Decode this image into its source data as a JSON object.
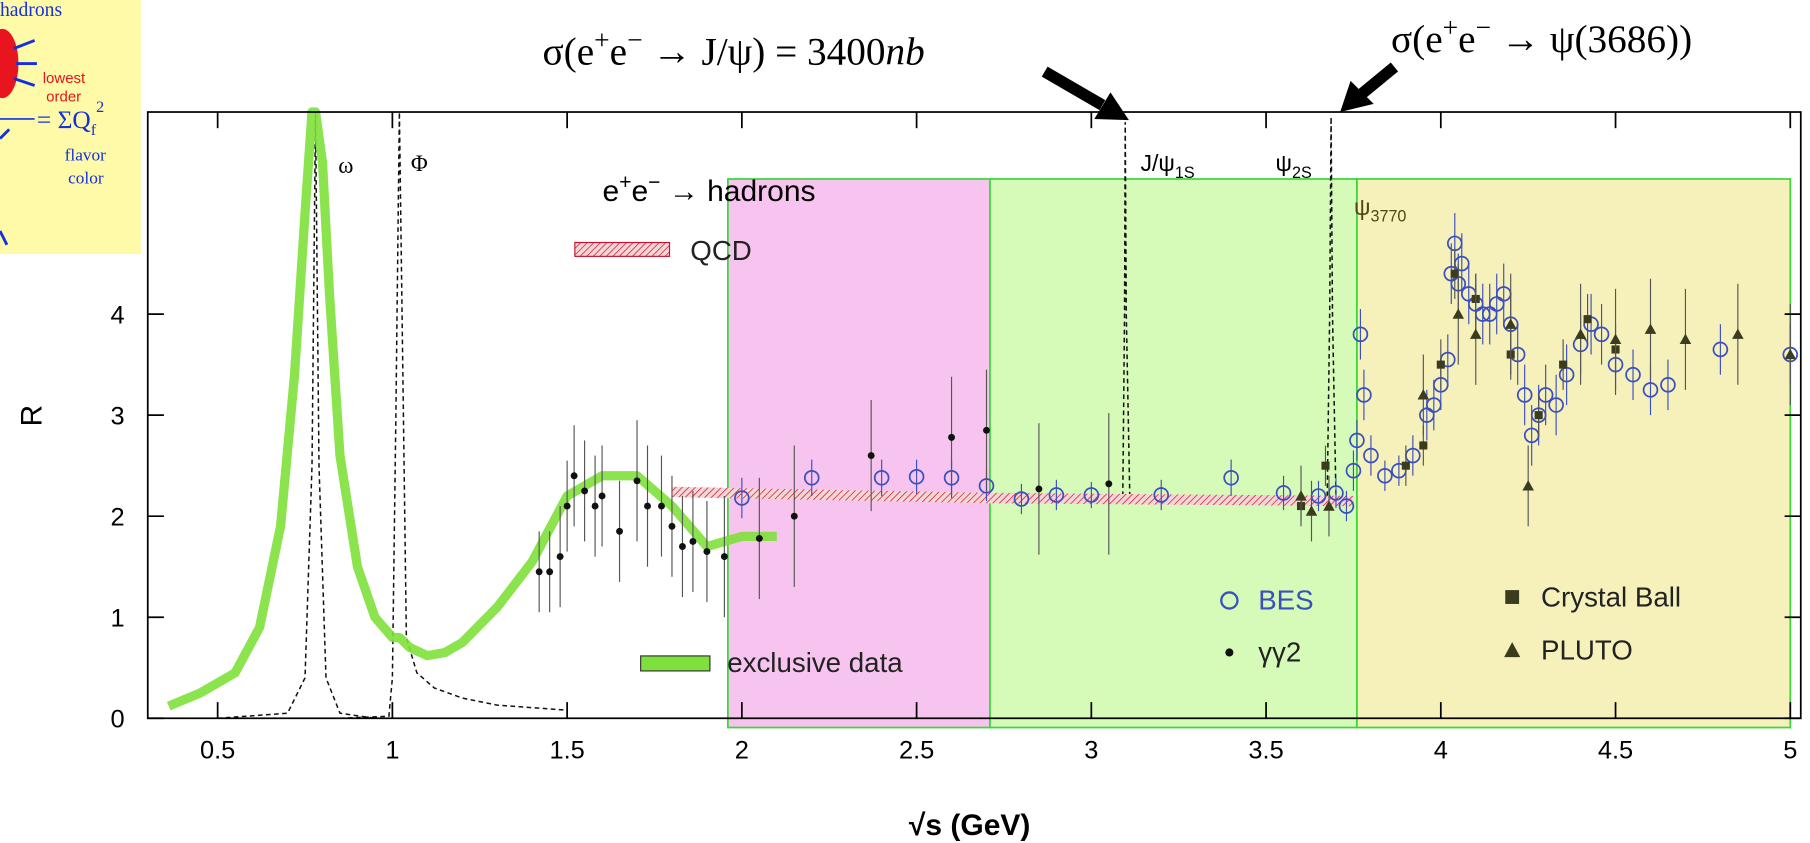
{
  "inset": {
    "title": "hadrons",
    "note": [
      "lowest",
      "order"
    ],
    "formula": "= ΣQ",
    "formula_sub": "f",
    "formula_sup": "2",
    "flavor": "flavor",
    "color": "color"
  },
  "chart_data": {
    "type": "scatter",
    "xlabel": "√s   (GeV)",
    "ylabel": "R",
    "xlim": [
      0.3,
      5.03
    ],
    "ylim": [
      0,
      6
    ],
    "xticks": [
      0.5,
      1,
      1.5,
      2,
      2.5,
      3,
      3.5,
      4,
      4.5,
      5
    ],
    "yticks": [
      0,
      1,
      2,
      3,
      4
    ],
    "regions": [
      {
        "from": 1.96,
        "to": 2.71,
        "color": "#f7c4ef"
      },
      {
        "from": 2.71,
        "to": 3.76,
        "color": "#d6fbb8"
      },
      {
        "from": 3.76,
        "to": 5.0,
        "color": "#f6f1bb"
      }
    ],
    "annotations": [
      {
        "segments": [
          {
            "text": "σ(e"
          },
          {
            "text": "+",
            "sup": true
          },
          {
            "text": "e"
          },
          {
            "text": "−",
            "sup": true
          },
          {
            "text": " → J/ψ) = 3400"
          },
          {
            "text": "nb",
            "italic": true
          }
        ]
      },
      {
        "segments": [
          {
            "text": "σ(e"
          },
          {
            "text": "+",
            "sup": true
          },
          {
            "text": "e"
          },
          {
            "text": "−",
            "sup": true
          },
          {
            "text": " → ψ(3686))"
          }
        ]
      },
      {
        "segments": [
          {
            "text": "ω"
          }
        ]
      },
      {
        "segments": [
          {
            "text": "Φ"
          }
        ]
      },
      {
        "segments": [
          {
            "text": "J/ψ"
          },
          {
            "text": "1S",
            "sub": true
          }
        ]
      },
      {
        "segments": [
          {
            "text": "ψ"
          },
          {
            "text": "2S",
            "sub": true
          }
        ]
      },
      {
        "segments": [
          {
            "text": "ψ"
          },
          {
            "text": "3770",
            "sub": true
          }
        ]
      },
      {
        "segments": [
          {
            "text": "e"
          },
          {
            "text": "+",
            "sup": true
          },
          {
            "text": "e"
          },
          {
            "text": "−",
            "sup": true
          },
          {
            "text": " → hadrons"
          }
        ]
      }
    ],
    "curves": [
      {
        "x": [
          0.5,
          0.7,
          0.75,
          0.77,
          0.78,
          0.79,
          0.81,
          0.85,
          0.95
        ],
        "values": [
          0.0,
          0.05,
          0.4,
          2.5,
          6.0,
          2.5,
          0.4,
          0.05,
          0.0
        ]
      },
      {
        "x": [
          0.85,
          0.99,
          1.0,
          1.01,
          1.02,
          1.04,
          1.07,
          1.12,
          1.2,
          1.3,
          1.5
        ],
        "values": [
          0.0,
          0.02,
          0.4,
          3.0,
          6.0,
          0.8,
          0.45,
          0.3,
          0.2,
          0.13,
          0.08
        ]
      },
      {
        "x": [
          3.09,
          3.095,
          3.097,
          3.1,
          3.11
        ],
        "values": [
          2.2,
          4.0,
          5.9,
          4.0,
          2.2
        ]
      },
      {
        "x": [
          3.675,
          3.682,
          3.686,
          3.69,
          3.7
        ],
        "values": [
          2.2,
          4.0,
          5.95,
          4.0,
          2.2
        ]
      }
    ],
    "series": [
      {
        "name": "exclusive data",
        "marker": "band",
        "color": "#7ee03a",
        "x": [
          0.36,
          0.45,
          0.55,
          0.62,
          0.68,
          0.72,
          0.75,
          0.77,
          0.78,
          0.8,
          0.82,
          0.85,
          0.9,
          0.95,
          1.0,
          1.02,
          1.05,
          1.1,
          1.15,
          1.2,
          1.3,
          1.4,
          1.5,
          1.6,
          1.7,
          1.8,
          1.9,
          2.0,
          2.1
        ],
        "values": [
          0.12,
          0.25,
          0.45,
          0.9,
          1.9,
          3.4,
          5.0,
          6.0,
          6.0,
          5.5,
          4.2,
          2.6,
          1.5,
          1.0,
          0.8,
          0.8,
          0.7,
          0.62,
          0.65,
          0.75,
          1.1,
          1.55,
          2.2,
          2.4,
          2.4,
          2.1,
          1.7,
          1.8,
          1.8
        ]
      },
      {
        "name": "QCD",
        "marker": "hatched",
        "color": "#c8102e",
        "x": [
          1.8,
          2.7,
          3.75
        ],
        "values": [
          2.24,
          2.18,
          2.15
        ]
      },
      {
        "name": "BES",
        "marker": "circle",
        "color": "#3a4fc0",
        "x": [
          2.0,
          2.2,
          2.4,
          2.5,
          2.6,
          2.7,
          2.8,
          2.9,
          3.0,
          3.2,
          3.4,
          3.55,
          3.65,
          3.7,
          3.73,
          3.75,
          3.76,
          3.77,
          3.78,
          3.8,
          3.84,
          3.88,
          3.92,
          3.96,
          3.98,
          4.0,
          4.02,
          4.03,
          4.04,
          4.05,
          4.06,
          4.08,
          4.1,
          4.12,
          4.14,
          4.16,
          4.18,
          4.2,
          4.22,
          4.24,
          4.26,
          4.28,
          4.3,
          4.33,
          4.36,
          4.4,
          4.43,
          4.46,
          4.5,
          4.55,
          4.6,
          4.65,
          4.8,
          5.0
        ],
        "values": [
          2.18,
          2.38,
          2.38,
          2.39,
          2.38,
          2.3,
          2.17,
          2.21,
          2.21,
          2.21,
          2.38,
          2.23,
          2.2,
          2.23,
          2.1,
          2.45,
          2.75,
          3.8,
          3.2,
          2.6,
          2.4,
          2.45,
          2.6,
          3.0,
          3.1,
          3.3,
          3.55,
          4.4,
          4.7,
          4.3,
          4.5,
          4.2,
          4.1,
          4.0,
          4.0,
          4.1,
          4.2,
          3.9,
          3.6,
          3.2,
          2.8,
          3.0,
          3.2,
          3.1,
          3.4,
          3.7,
          3.9,
          3.8,
          3.5,
          3.4,
          3.25,
          3.3,
          3.65,
          3.6
        ],
        "errors": [
          0.2,
          0.18,
          0.18,
          0.17,
          0.17,
          0.15,
          0.15,
          0.15,
          0.13,
          0.15,
          0.18,
          0.17,
          0.15,
          0.15,
          0.15,
          0.2,
          0.2,
          0.25,
          0.25,
          0.2,
          0.15,
          0.15,
          0.2,
          0.25,
          0.25,
          0.25,
          0.25,
          0.3,
          0.3,
          0.3,
          0.3,
          0.3,
          0.3,
          0.3,
          0.3,
          0.3,
          0.3,
          0.3,
          0.3,
          0.3,
          0.3,
          0.3,
          0.3,
          0.3,
          0.3,
          0.3,
          0.3,
          0.3,
          0.3,
          0.25,
          0.25,
          0.25,
          0.25,
          0.3
        ]
      },
      {
        "name": "γγ2",
        "marker": "dot",
        "color": "#111111",
        "x": [
          1.42,
          1.45,
          1.48,
          1.5,
          1.52,
          1.55,
          1.58,
          1.6,
          1.65,
          1.7,
          1.73,
          1.77,
          1.8,
          1.83,
          1.86,
          1.9,
          1.95,
          2.05,
          2.15,
          2.37,
          2.6,
          2.7,
          2.85,
          3.05
        ],
        "values": [
          1.45,
          1.45,
          1.6,
          2.1,
          2.4,
          2.25,
          2.1,
          2.2,
          1.85,
          2.35,
          2.1,
          2.1,
          1.9,
          1.7,
          1.75,
          1.65,
          1.6,
          1.78,
          2.0,
          2.6,
          2.78,
          2.85,
          2.27,
          2.32
        ],
        "errors": [
          0.4,
          0.4,
          0.5,
          0.45,
          0.5,
          0.5,
          0.5,
          0.5,
          0.5,
          0.6,
          0.6,
          0.5,
          0.5,
          0.5,
          0.5,
          0.5,
          0.6,
          0.6,
          0.7,
          0.55,
          0.6,
          0.6,
          0.65,
          0.7
        ]
      },
      {
        "name": "Crystal Ball",
        "marker": "square",
        "color": "#3b3b1e",
        "x": [
          3.6,
          3.67,
          3.9,
          3.95,
          4.0,
          4.04,
          4.1,
          4.2,
          4.28,
          4.35,
          4.42,
          4.5
        ],
        "values": [
          2.1,
          2.5,
          2.5,
          2.7,
          3.5,
          4.4,
          4.15,
          3.6,
          3.0,
          3.5,
          3.95,
          3.65
        ],
        "errors": [
          0.15,
          0.2,
          0.2,
          0.2,
          0.25,
          0.25,
          0.25,
          0.25,
          0.2,
          0.25,
          0.25,
          0.25
        ]
      },
      {
        "name": "PLUTO",
        "marker": "triangle",
        "color": "#3b3b1e",
        "x": [
          3.6,
          3.63,
          3.68,
          3.95,
          4.05,
          4.1,
          4.2,
          4.25,
          4.4,
          4.5,
          4.6,
          4.7,
          4.85,
          5.0
        ],
        "values": [
          2.2,
          2.05,
          2.1,
          3.2,
          4.0,
          3.8,
          3.9,
          2.3,
          3.8,
          3.75,
          3.85,
          3.75,
          3.8,
          3.6
        ],
        "errors": [
          0.3,
          0.3,
          0.3,
          0.4,
          0.5,
          0.5,
          0.5,
          0.4,
          0.5,
          0.5,
          0.5,
          0.5,
          0.5,
          0.5
        ]
      }
    ]
  }
}
